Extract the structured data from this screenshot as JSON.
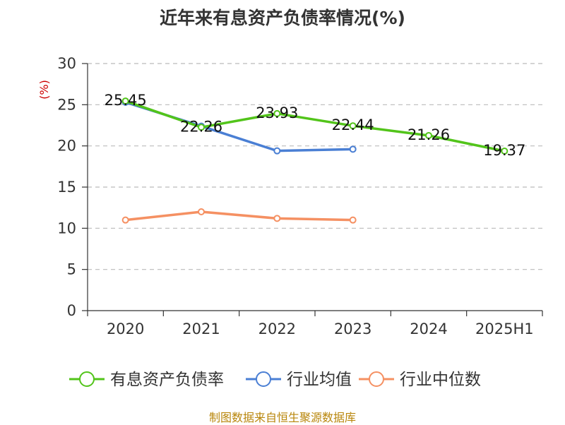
{
  "chart_data": {
    "type": "line",
    "title": "近年来有息资产负债率情况(%)",
    "ylabel": "(%)",
    "categories": [
      "2020",
      "2021",
      "2022",
      "2023",
      "2024",
      "2025H1"
    ],
    "ylim": [
      0,
      30
    ],
    "yticks": [
      "0",
      "5",
      "10",
      "15",
      "20",
      "25",
      "30"
    ],
    "grid": true,
    "legend_position": "bottom",
    "series": [
      {
        "name": "有息资产负债率",
        "color": "#52c41a",
        "values": [
          25.45,
          22.26,
          23.93,
          22.44,
          21.26,
          19.37
        ],
        "labels": [
          "25.45",
          "22.26",
          "23.93",
          "22.44",
          "21.26",
          "19.37"
        ]
      },
      {
        "name": "行业均值",
        "color": "#4a7fd4",
        "values": [
          25.3,
          22.4,
          19.4,
          19.6,
          null,
          null
        ]
      },
      {
        "name": "行业中位数",
        "color": "#f59062",
        "values": [
          11.0,
          12.0,
          11.2,
          11.0,
          null,
          null
        ]
      }
    ]
  },
  "source": "制图数据来自恒生聚源数据库"
}
